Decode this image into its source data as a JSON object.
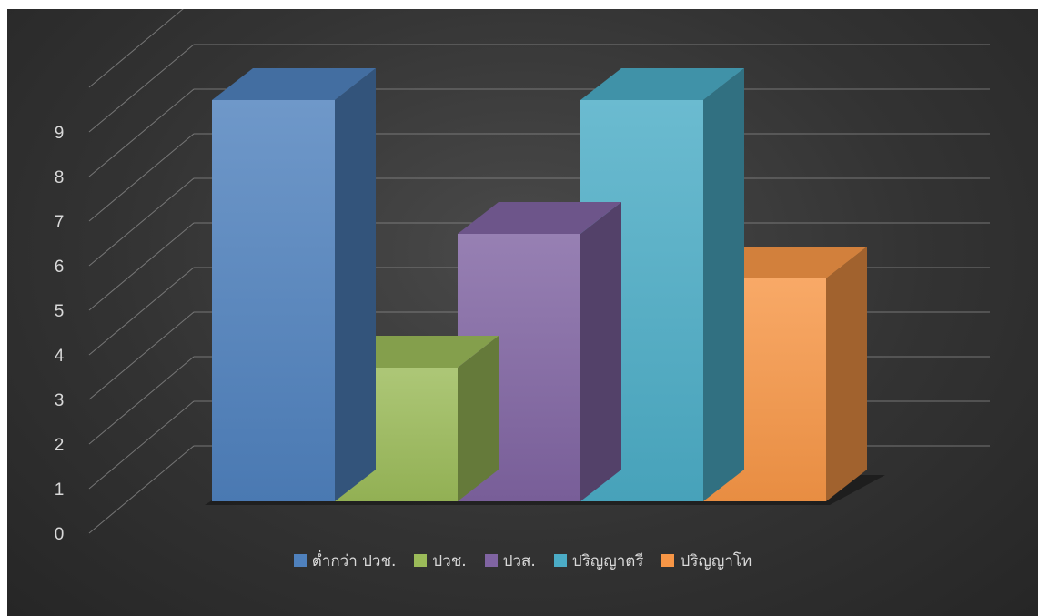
{
  "chart_data": {
    "type": "bar",
    "style": "3d-column",
    "categories": [
      "ต่ำกว่า ปวช.",
      "ปวช.",
      "ปวส.",
      "ปริญญาตรี",
      "ปริญญาโท"
    ],
    "values": [
      9,
      3,
      6,
      9,
      5
    ],
    "colors": [
      "#4f81bd",
      "#9bbb59",
      "#8064a2",
      "#4bacc6",
      "#f79646"
    ],
    "ylim": [
      0,
      9
    ],
    "yticks": [
      "0",
      "1",
      "2",
      "3",
      "4",
      "5",
      "6",
      "7",
      "8",
      "9"
    ],
    "title": "",
    "xlabel": "",
    "ylabel": "",
    "grid": true,
    "legend_position": "bottom",
    "background": "#333333",
    "text_color": "#d9d9d9"
  }
}
